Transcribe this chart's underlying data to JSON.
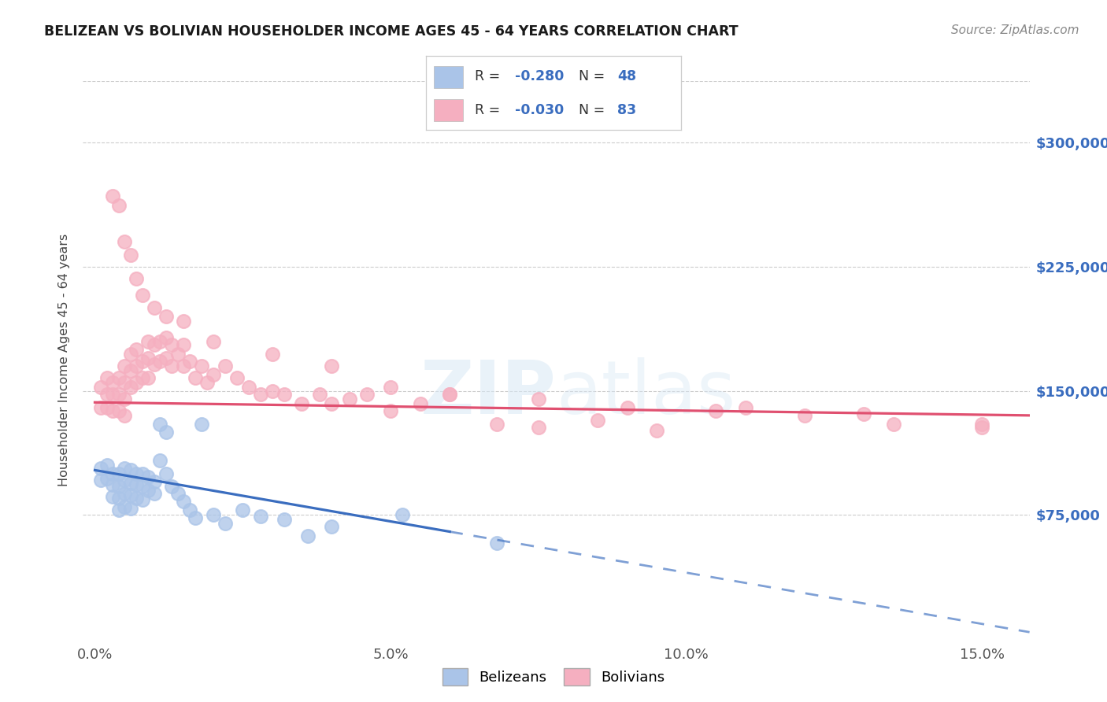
{
  "title": "BELIZEAN VS BOLIVIAN HOUSEHOLDER INCOME AGES 45 - 64 YEARS CORRELATION CHART",
  "source": "Source: ZipAtlas.com",
  "ylabel": "Householder Income Ages 45 - 64 years",
  "ytick_labels": [
    "$75,000",
    "$150,000",
    "$225,000",
    "$300,000"
  ],
  "ytick_vals": [
    75000,
    150000,
    225000,
    300000
  ],
  "xtick_labels": [
    "0.0%",
    "5.0%",
    "10.0%",
    "15.0%"
  ],
  "xtick_vals": [
    0.0,
    0.05,
    0.1,
    0.15
  ],
  "ylim": [
    0,
    337500
  ],
  "xlim": [
    -0.002,
    0.158
  ],
  "belizean_R": "-0.280",
  "belizean_N": "48",
  "bolivian_R": "-0.030",
  "bolivian_N": "83",
  "belizean_color": "#aac4e8",
  "bolivian_color": "#f5afc0",
  "belizean_line_color": "#3a6dbf",
  "bolivian_line_color": "#e05070",
  "label_color": "#3a6dbf",
  "watermark": "ZIPatlas",
  "belizean_label": "Belizeans",
  "bolivian_label": "Bolivians",
  "bel_line_intercept": 102000,
  "bel_line_slope": -620000,
  "bol_line_intercept": 143000,
  "bol_line_slope": -50000,
  "belizean_x": [
    0.001,
    0.001,
    0.002,
    0.002,
    0.003,
    0.003,
    0.003,
    0.004,
    0.004,
    0.004,
    0.004,
    0.005,
    0.005,
    0.005,
    0.005,
    0.006,
    0.006,
    0.006,
    0.006,
    0.007,
    0.007,
    0.007,
    0.008,
    0.008,
    0.008,
    0.009,
    0.009,
    0.01,
    0.01,
    0.011,
    0.011,
    0.012,
    0.012,
    0.013,
    0.014,
    0.015,
    0.016,
    0.017,
    0.018,
    0.02,
    0.022,
    0.025,
    0.028,
    0.032,
    0.036,
    0.04,
    0.052,
    0.068
  ],
  "belizean_y": [
    103000,
    96000,
    105000,
    97000,
    100000,
    93000,
    86000,
    100000,
    92000,
    85000,
    78000,
    103000,
    96000,
    88000,
    80000,
    102000,
    94000,
    87000,
    79000,
    100000,
    93000,
    85000,
    100000,
    92000,
    84000,
    98000,
    90000,
    95000,
    88000,
    130000,
    108000,
    125000,
    100000,
    92000,
    88000,
    83000,
    78000,
    73000,
    130000,
    75000,
    70000,
    78000,
    74000,
    72000,
    62000,
    68000,
    75000,
    58000
  ],
  "bolivian_x": [
    0.001,
    0.001,
    0.002,
    0.002,
    0.002,
    0.003,
    0.003,
    0.003,
    0.004,
    0.004,
    0.004,
    0.005,
    0.005,
    0.005,
    0.005,
    0.006,
    0.006,
    0.006,
    0.007,
    0.007,
    0.007,
    0.008,
    0.008,
    0.009,
    0.009,
    0.009,
    0.01,
    0.01,
    0.011,
    0.011,
    0.012,
    0.012,
    0.013,
    0.013,
    0.014,
    0.015,
    0.015,
    0.016,
    0.017,
    0.018,
    0.019,
    0.02,
    0.022,
    0.024,
    0.026,
    0.028,
    0.03,
    0.032,
    0.035,
    0.038,
    0.04,
    0.043,
    0.046,
    0.05,
    0.055,
    0.06,
    0.068,
    0.075,
    0.085,
    0.095,
    0.11,
    0.13,
    0.15,
    0.003,
    0.004,
    0.005,
    0.006,
    0.007,
    0.008,
    0.01,
    0.012,
    0.015,
    0.02,
    0.03,
    0.04,
    0.05,
    0.06,
    0.075,
    0.09,
    0.105,
    0.12,
    0.135,
    0.15
  ],
  "bolivian_y": [
    152000,
    140000,
    158000,
    148000,
    140000,
    155000,
    148000,
    138000,
    158000,
    148000,
    138000,
    165000,
    155000,
    145000,
    135000,
    172000,
    162000,
    152000,
    175000,
    165000,
    155000,
    168000,
    158000,
    180000,
    170000,
    158000,
    178000,
    166000,
    180000,
    168000,
    182000,
    170000,
    178000,
    165000,
    172000,
    178000,
    165000,
    168000,
    158000,
    165000,
    155000,
    160000,
    165000,
    158000,
    152000,
    148000,
    150000,
    148000,
    142000,
    148000,
    142000,
    145000,
    148000,
    138000,
    142000,
    148000,
    130000,
    128000,
    132000,
    126000,
    140000,
    136000,
    130000,
    268000,
    262000,
    240000,
    232000,
    218000,
    208000,
    200000,
    195000,
    192000,
    180000,
    172000,
    165000,
    152000,
    148000,
    145000,
    140000,
    138000,
    135000,
    130000,
    128000
  ]
}
